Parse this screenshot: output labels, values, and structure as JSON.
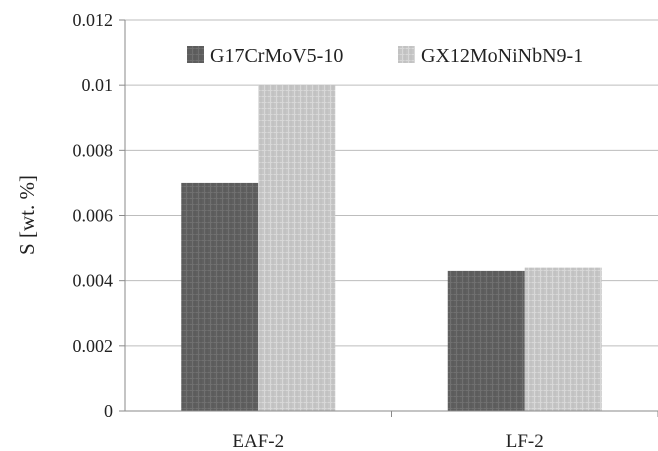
{
  "chart_data": {
    "type": "bar",
    "title": "",
    "xlabel": "",
    "ylabel": "S  [wt. %]",
    "ylim": [
      0,
      0.012
    ],
    "yticks": [
      "0",
      "0.002",
      "0.004",
      "0.006",
      "0.008",
      "0.01",
      "0.012"
    ],
    "grid": true,
    "legend_position": "top",
    "categories": [
      "EAF-2",
      "LF-2"
    ],
    "series": [
      {
        "name": "G17CrMoV5-10",
        "values": [
          0.007,
          0.0043
        ],
        "color": "#5f5f5f"
      },
      {
        "name": "GX12MoNiNbN9-1",
        "values": [
          0.01,
          0.0044
        ],
        "color": "#c4c4c4"
      }
    ]
  }
}
